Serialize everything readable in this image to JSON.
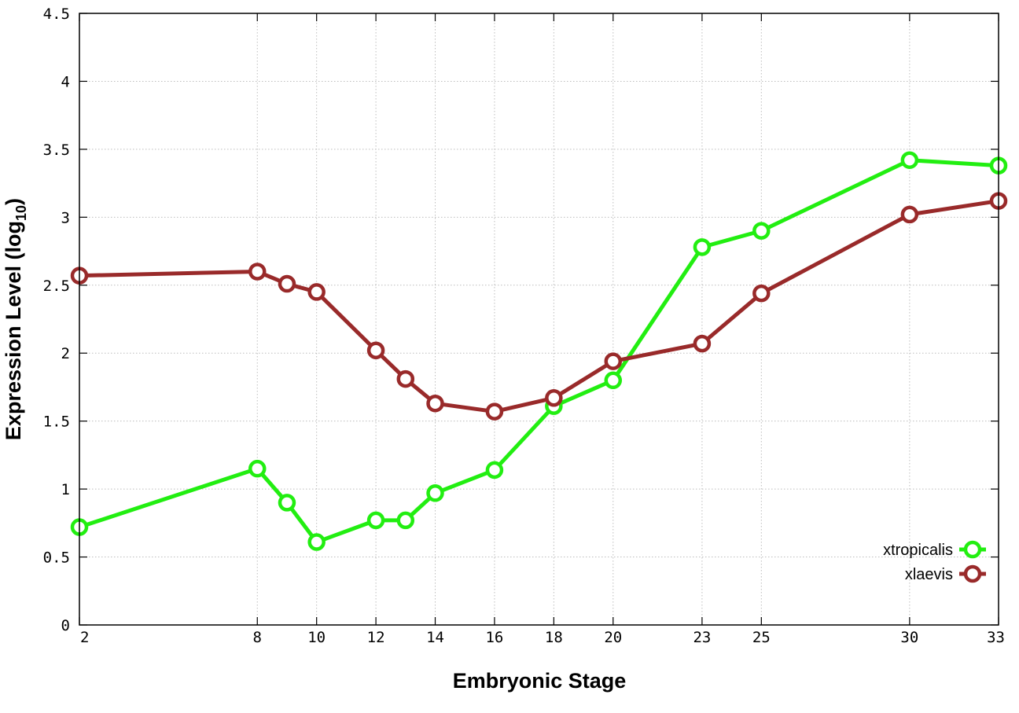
{
  "chart_data": {
    "type": "line",
    "title": "",
    "xlabel": "Embryonic Stage",
    "ylabel_main": "Expression Level (log",
    "ylabel_sub": "10",
    "ylabel_close": ")",
    "x": [
      2,
      8,
      9,
      10,
      12,
      13,
      14,
      16,
      18,
      20,
      23,
      25,
      30,
      33
    ],
    "x_tick_labels": [
      "2",
      "8",
      "10",
      "12",
      "14",
      "16",
      "18",
      "20",
      "23",
      "25",
      "30",
      "33"
    ],
    "x_tick_values": [
      2,
      8,
      10,
      12,
      14,
      16,
      18,
      20,
      23,
      25,
      30,
      33
    ],
    "xlim": [
      2,
      33
    ],
    "ylim": [
      0,
      4.5
    ],
    "y_ticks": [
      0,
      0.5,
      1,
      1.5,
      2,
      2.5,
      3,
      3.5,
      4,
      4.5
    ],
    "y_tick_labels": [
      "0",
      "0.5",
      "1",
      "1.5",
      "2",
      "2.5",
      "3",
      "3.5",
      "4",
      "4.5"
    ],
    "grid": true,
    "legend_position": "bottom-right",
    "series": [
      {
        "name": "xtropicalis",
        "color": "#22ee11",
        "values": [
          0.72,
          1.15,
          0.9,
          0.61,
          0.77,
          0.77,
          0.97,
          1.14,
          1.61,
          1.8,
          2.78,
          2.9,
          3.42,
          3.38
        ]
      },
      {
        "name": "xlaevis",
        "color": "#992a2a",
        "values": [
          2.57,
          2.6,
          2.51,
          2.45,
          2.02,
          1.81,
          1.63,
          1.57,
          1.67,
          1.94,
          2.07,
          2.44,
          3.02,
          3.12
        ]
      }
    ]
  }
}
